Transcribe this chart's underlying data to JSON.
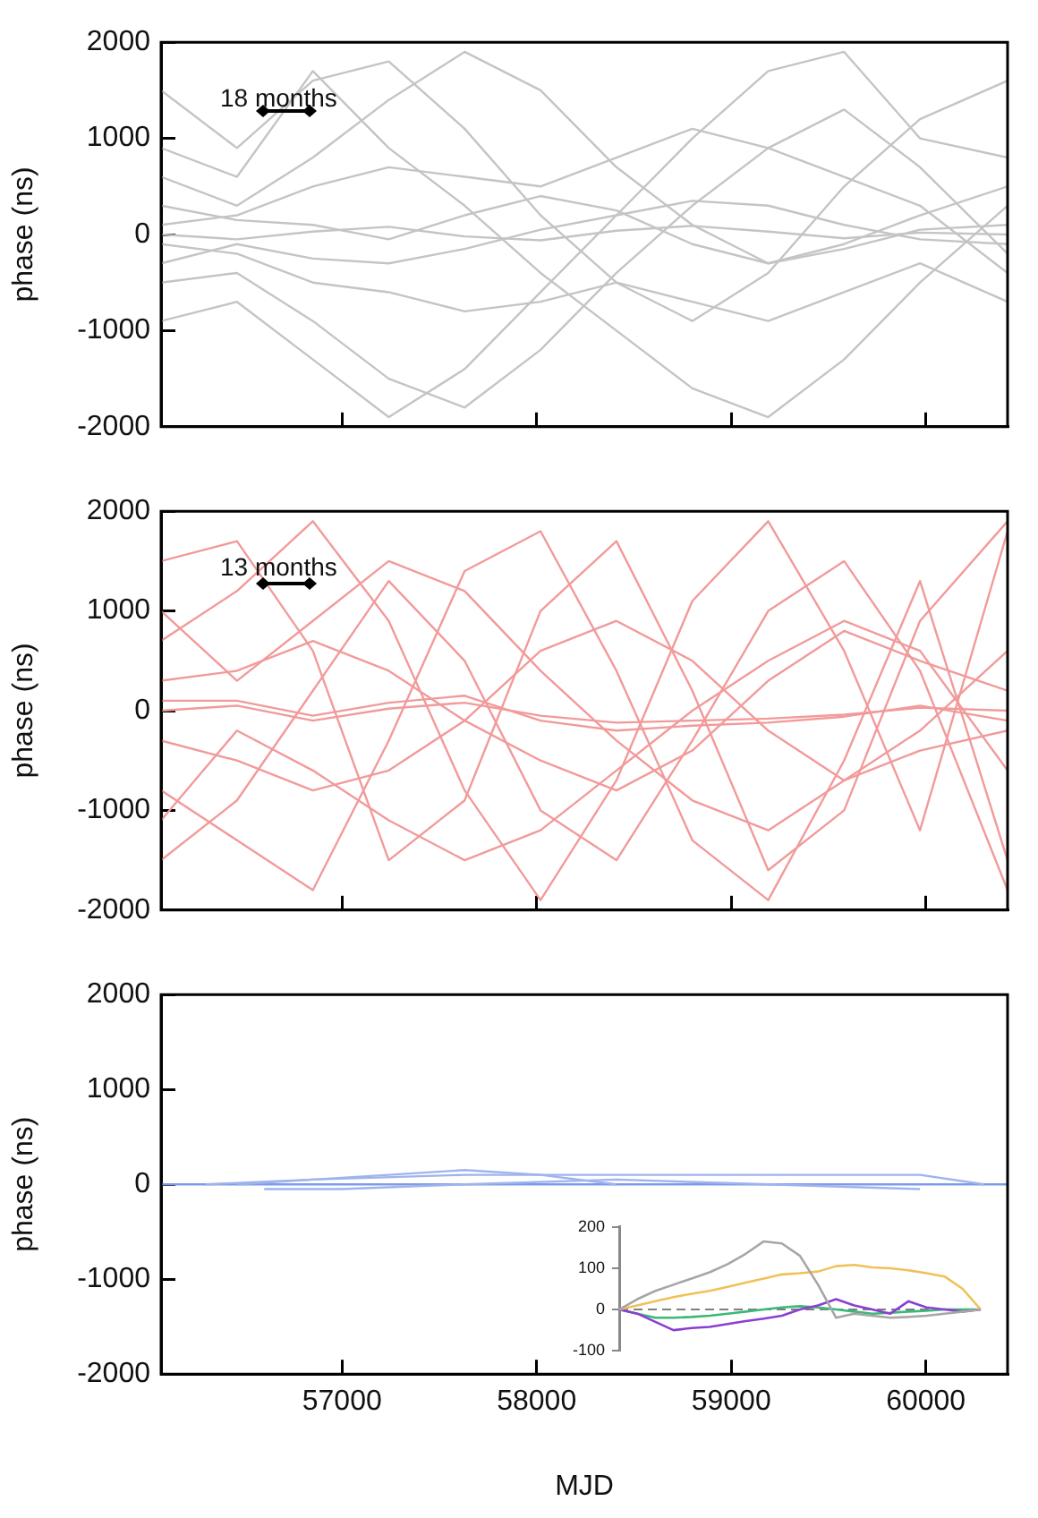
{
  "chart_data": [
    {
      "type": "line",
      "ylabel": "phase (ns)",
      "annotations": [
        "18 months"
      ],
      "marker": "none",
      "tick_labels": "y",
      "xlim": [
        56070,
        60420
      ],
      "xticks": [
        {
          "value": 57000,
          "label": null
        },
        {
          "value": 58000,
          "label": null
        },
        {
          "value": 59000,
          "label": null
        },
        {
          "value": 60000,
          "label": null
        }
      ],
      "ylim": [
        -2000,
        2000
      ],
      "yticks": [
        -2000,
        -1000,
        0,
        1000,
        2000
      ],
      "x": [
        56070,
        56460,
        56850,
        57240,
        57630,
        58020,
        58410,
        58800,
        59190,
        59580,
        59970,
        60420
      ],
      "series": [
        {
          "color": "#c4c4c4",
          "values": [
            600,
            300,
            800,
            1400,
            1900,
            1500,
            700,
            100,
            -300,
            -100,
            200,
            500
          ]
        },
        {
          "color": "#c4c4c4",
          "values": [
            -500,
            -400,
            -900,
            -1500,
            -1800,
            -1200,
            -400,
            300,
            900,
            1300,
            700,
            -200
          ]
        },
        {
          "color": "#c4c4c4",
          "values": [
            300,
            150,
            100,
            -50,
            200,
            400,
            250,
            -100,
            -300,
            -150,
            50,
            100
          ]
        },
        {
          "color": "#c4c4c4",
          "values": [
            -300,
            -100,
            -250,
            -300,
            -150,
            50,
            200,
            350,
            300,
            100,
            -50,
            -100
          ]
        },
        {
          "color": "#c4c4c4",
          "values": [
            900,
            600,
            1700,
            900,
            300,
            -400,
            -1000,
            -1600,
            -1900,
            -1300,
            -500,
            300
          ]
        },
        {
          "color": "#c4c4c4",
          "values": [
            -900,
            -700,
            -1300,
            -1900,
            -1400,
            -600,
            200,
            1000,
            1700,
            1900,
            1000,
            800
          ]
        },
        {
          "color": "#c4c4c4",
          "values": [
            100,
            200,
            500,
            700,
            600,
            500,
            800,
            1100,
            900,
            600,
            300,
            -400
          ]
        },
        {
          "color": "#c4c4c4",
          "values": [
            -100,
            -200,
            -500,
            -600,
            -800,
            -700,
            -500,
            -700,
            -900,
            -600,
            -300,
            -700
          ]
        },
        {
          "color": "#c4c4c4",
          "values": [
            1500,
            900,
            1600,
            1800,
            1100,
            200,
            -500,
            -900,
            -400,
            500,
            1200,
            1600
          ]
        },
        {
          "color": "#c4c4c4",
          "values": [
            0,
            -50,
            30,
            80,
            -20,
            -60,
            40,
            90,
            30,
            -40,
            20,
            0
          ]
        }
      ]
    },
    {
      "type": "line",
      "ylabel": "phase (ns)",
      "annotations": [
        "13 months"
      ],
      "marker": "none",
      "tick_labels": "y",
      "xlim": [
        56070,
        60420
      ],
      "xticks": [
        {
          "value": 57000,
          "label": null
        },
        {
          "value": 58000,
          "label": null
        },
        {
          "value": 59000,
          "label": null
        },
        {
          "value": 60000,
          "label": null
        }
      ],
      "ylim": [
        -2000,
        2000
      ],
      "yticks": [
        -2000,
        -1000,
        0,
        1000,
        2000
      ],
      "x": [
        56070,
        56460,
        56850,
        57240,
        57630,
        58020,
        58410,
        58800,
        59190,
        59580,
        59970,
        60420
      ],
      "series": [
        {
          "color": "#f29a9a",
          "values": [
            700,
            1200,
            1900,
            900,
            -800,
            -1900,
            -700,
            1100,
            1900,
            600,
            -1200,
            1800
          ]
        },
        {
          "color": "#f29a9a",
          "values": [
            -800,
            -1300,
            -1800,
            -300,
            1400,
            1800,
            400,
            -1300,
            -1900,
            -500,
            1300,
            -1500
          ]
        },
        {
          "color": "#f29a9a",
          "values": [
            300,
            400,
            700,
            400,
            -100,
            -500,
            -800,
            -400,
            300,
            800,
            500,
            200
          ]
        },
        {
          "color": "#f29a9a",
          "values": [
            -300,
            -500,
            -800,
            -600,
            -100,
            600,
            900,
            500,
            -200,
            -700,
            -400,
            -200
          ]
        },
        {
          "color": "#f29a9a",
          "values": [
            100,
            100,
            -50,
            80,
            150,
            -100,
            -200,
            -150,
            -120,
            -60,
            50,
            -100
          ]
        },
        {
          "color": "#f29a9a",
          "values": [
            1500,
            1700,
            600,
            -1500,
            -900,
            1000,
            1700,
            200,
            -1600,
            -1000,
            900,
            1900
          ]
        },
        {
          "color": "#f29a9a",
          "values": [
            -1500,
            -900,
            200,
            1300,
            500,
            -1000,
            -1500,
            -300,
            1000,
            1500,
            400,
            -1800
          ]
        },
        {
          "color": "#f29a9a",
          "values": [
            1000,
            300,
            900,
            1500,
            1200,
            400,
            -300,
            -900,
            -1200,
            -700,
            -200,
            600
          ]
        },
        {
          "color": "#f29a9a",
          "values": [
            -1100,
            -200,
            -600,
            -1100,
            -1500,
            -1200,
            -600,
            0,
            500,
            900,
            600,
            -600
          ]
        },
        {
          "color": "#f29a9a",
          "values": [
            0,
            50,
            -100,
            20,
            80,
            -50,
            -120,
            -100,
            -80,
            -40,
            30,
            0
          ]
        }
      ]
    },
    {
      "type": "line",
      "ylabel": "phase (ns)",
      "xlabel": "MJD",
      "marker": "none",
      "xlim": [
        56070,
        60420
      ],
      "xticks": [
        57000,
        58000,
        59000,
        60000
      ],
      "ylim": [
        -2000,
        2000
      ],
      "yticks": [
        -2000,
        -1000,
        0,
        1000,
        2000
      ],
      "series": [
        {
          "color": "#9fb3ee",
          "x": [
            56300,
            56850,
            57240,
            57630,
            58020,
            58410
          ],
          "values": [
            0,
            50,
            100,
            150,
            100,
            0
          ]
        },
        {
          "color": "#9fb3ee",
          "x": [
            56460,
            56850,
            57630,
            58410,
            59190,
            59970,
            60300
          ],
          "values": [
            0,
            50,
            100,
            100,
            100,
            100,
            0
          ]
        },
        {
          "color": "#9fb3ee",
          "x": [
            56600,
            57000,
            57630,
            58410,
            59190,
            59970
          ],
          "values": [
            -50,
            -50,
            0,
            50,
            0,
            -50
          ]
        },
        {
          "color": "#7f9be8",
          "x": [
            56070,
            60420
          ],
          "values": [
            0,
            0
          ]
        }
      ]
    },
    {
      "type": "line",
      "marker": "none",
      "tick_labels": "y",
      "ylim": [
        -100,
        200
      ],
      "yticks": [
        -100,
        0,
        100,
        200
      ],
      "categories": [
        null,
        null,
        null,
        null,
        null,
        null,
        null,
        null,
        null,
        null,
        null,
        null,
        null,
        null,
        null,
        null,
        null,
        null,
        null,
        null,
        null
      ],
      "ref_lines": [
        {
          "axis": "y",
          "value": 0,
          "color": "#555555",
          "line_style": "dashed"
        }
      ],
      "series": [
        {
          "color": "#a6a6a6",
          "values": [
            0,
            25,
            45,
            60,
            75,
            90,
            110,
            135,
            165,
            160,
            130,
            60,
            -20,
            -10,
            -15,
            -20,
            -18,
            -15,
            -10,
            -5,
            0
          ]
        },
        {
          "color": "#f2c05a",
          "values": [
            0,
            10,
            20,
            30,
            38,
            45,
            55,
            65,
            75,
            85,
            88,
            92,
            105,
            108,
            102,
            100,
            95,
            88,
            80,
            50,
            0
          ]
        },
        {
          "color": "#8a3fd1",
          "values": [
            0,
            -10,
            -30,
            -50,
            -45,
            -42,
            -35,
            -28,
            -22,
            -15,
            0,
            10,
            25,
            10,
            0,
            -10,
            20,
            5,
            0,
            -5,
            0
          ]
        },
        {
          "color": "#3cb878",
          "values": [
            0,
            -10,
            -20,
            -20,
            -18,
            -15,
            -10,
            -5,
            0,
            5,
            8,
            5,
            0,
            -5,
            -10,
            -8,
            -5,
            -3,
            0,
            0,
            0
          ]
        }
      ]
    }
  ]
}
